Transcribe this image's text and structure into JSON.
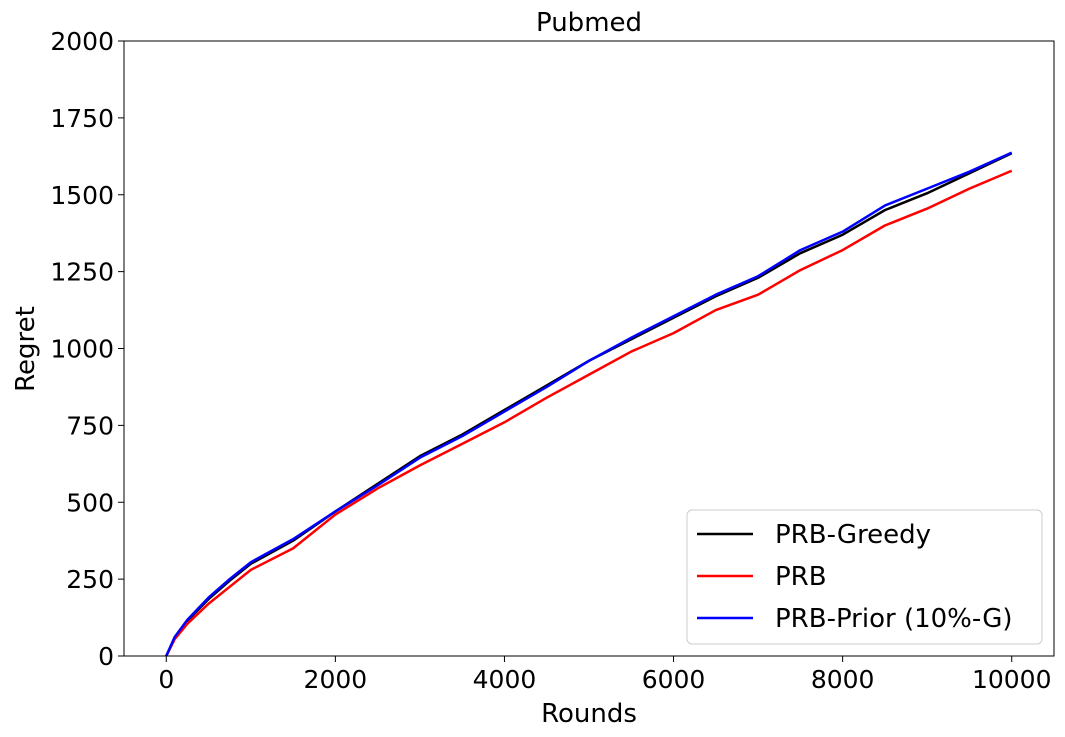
{
  "chart_data": {
    "type": "line",
    "title": "Pubmed",
    "x_label": "Rounds",
    "y_label": "Regret",
    "x": [
      0,
      100,
      250,
      500,
      750,
      1000,
      1500,
      2000,
      2500,
      3000,
      3500,
      4000,
      4500,
      5000,
      5500,
      6000,
      6500,
      7000,
      7500,
      8000,
      8500,
      9000,
      9500,
      10000
    ],
    "series": [
      {
        "name": "PRB-Greedy",
        "color": "#000000",
        "values": [
          0,
          60,
          115,
          185,
          245,
          300,
          375,
          470,
          560,
          650,
          720,
          800,
          880,
          960,
          1030,
          1100,
          1170,
          1230,
          1310,
          1370,
          1450,
          1505,
          1570,
          1635
        ]
      },
      {
        "name": "PRB",
        "color": "#ff0000",
        "values": [
          0,
          55,
          105,
          170,
          225,
          280,
          350,
          460,
          545,
          620,
          690,
          760,
          840,
          915,
          990,
          1050,
          1125,
          1175,
          1255,
          1320,
          1400,
          1455,
          1520,
          1578
        ]
      },
      {
        "name": "PRB-Prior (10%-G)",
        "color": "#0000ff",
        "values": [
          0,
          62,
          118,
          190,
          250,
          305,
          380,
          470,
          555,
          645,
          715,
          795,
          875,
          960,
          1035,
          1105,
          1175,
          1235,
          1320,
          1380,
          1465,
          1520,
          1575,
          1637
        ]
      }
    ],
    "xlim": [
      -500,
      10500
    ],
    "ylim": [
      0,
      2000
    ],
    "xticks": [
      0,
      2000,
      4000,
      6000,
      8000,
      10000
    ],
    "yticks": [
      0,
      250,
      500,
      750,
      1000,
      1250,
      1500,
      1750,
      2000
    ],
    "legend": "lower right"
  }
}
